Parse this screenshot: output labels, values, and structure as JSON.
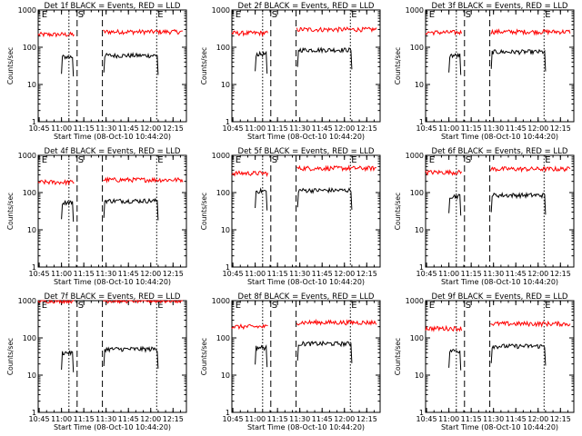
{
  "figure": {
    "panels_rows": 3,
    "panels_cols": 3
  },
  "chart_data": [
    {
      "type": "line",
      "title": "Det 1f BLACK = Events, RED = LLD",
      "xlabel": "Start Time (08-Oct-10 10:44:20)",
      "ylabel": "Counts/sec",
      "yscale": "log",
      "ylim": [
        1,
        1000
      ],
      "xlim": [
        "10:44:20",
        "12:24:00"
      ],
      "x_ticks": [
        "10:45",
        "11:00",
        "11:15",
        "11:30",
        "11:45",
        "12:00",
        "12:15"
      ],
      "y_ticks": [
        "1",
        "10",
        "100",
        "1000"
      ],
      "markers": [
        {
          "time": "10:46:00",
          "label": "E",
          "style": "none"
        },
        {
          "time": "11:05:00",
          "label": "",
          "style": "dotted"
        },
        {
          "time": "11:10:30",
          "label": "S",
          "style": "dashed"
        },
        {
          "time": "11:27:30",
          "label": "",
          "style": "dashed"
        },
        {
          "time": "12:04:00",
          "label": "E",
          "style": "dotted"
        }
      ],
      "series": [
        {
          "name": "LLD",
          "color": "#ff0000",
          "segments": [
            {
              "start": "10:44:20",
              "end": "11:08:30",
              "level": 220
            },
            {
              "start": "11:28:00",
              "end": "12:21:30",
              "level": 260
            }
          ]
        },
        {
          "name": "Events",
          "color": "#000000",
          "segments": [
            {
              "start": "11:00:00",
              "end": "11:08:00",
              "level": 55
            },
            {
              "start": "11:28:30",
              "end": "12:05:00",
              "level": 60
            }
          ]
        }
      ]
    },
    {
      "type": "line",
      "title": "Det 2f BLACK = Events, RED = LLD",
      "xlabel": "Start Time (08-Oct-10 10:44:20)",
      "ylabel": "Counts/sec",
      "yscale": "log",
      "ylim": [
        1,
        1000
      ],
      "xlim": [
        "10:44:20",
        "12:24:00"
      ],
      "x_ticks": [
        "10:45",
        "11:00",
        "11:15",
        "11:30",
        "11:45",
        "12:00",
        "12:15"
      ],
      "y_ticks": [
        "1",
        "10",
        "100",
        "1000"
      ],
      "markers": [
        {
          "time": "10:46:00",
          "label": "E",
          "style": "none"
        },
        {
          "time": "11:05:00",
          "label": "",
          "style": "dotted"
        },
        {
          "time": "11:10:30",
          "label": "S",
          "style": "dashed"
        },
        {
          "time": "11:27:30",
          "label": "",
          "style": "dashed"
        },
        {
          "time": "12:04:00",
          "label": "E",
          "style": "dotted"
        }
      ],
      "series": [
        {
          "name": "LLD",
          "color": "#ff0000",
          "segments": [
            {
              "start": "10:44:20",
              "end": "11:08:30",
              "level": 240
            },
            {
              "start": "11:28:00",
              "end": "12:21:30",
              "level": 300
            }
          ]
        },
        {
          "name": "Events",
          "color": "#000000",
          "segments": [
            {
              "start": "11:00:00",
              "end": "11:08:00",
              "level": 65
            },
            {
              "start": "11:28:30",
              "end": "12:05:00",
              "level": 85
            }
          ]
        }
      ]
    },
    {
      "type": "line",
      "title": "Det 3f BLACK = Events, RED = LLD",
      "xlabel": "Start Time (08-Oct-10 10:44:20)",
      "ylabel": "Counts/sec",
      "yscale": "log",
      "ylim": [
        1,
        1000
      ],
      "xlim": [
        "10:44:20",
        "12:24:00"
      ],
      "x_ticks": [
        "10:45",
        "11:00",
        "11:15",
        "11:30",
        "11:45",
        "12:00",
        "12:15"
      ],
      "y_ticks": [
        "1",
        "10",
        "100",
        "1000"
      ],
      "markers": [
        {
          "time": "10:46:00",
          "label": "E",
          "style": "none"
        },
        {
          "time": "11:05:00",
          "label": "",
          "style": "dotted"
        },
        {
          "time": "11:10:30",
          "label": "S",
          "style": "dashed"
        },
        {
          "time": "11:27:30",
          "label": "",
          "style": "dashed"
        },
        {
          "time": "12:04:00",
          "label": "E",
          "style": "dotted"
        }
      ],
      "series": [
        {
          "name": "LLD",
          "color": "#ff0000",
          "segments": [
            {
              "start": "10:44:20",
              "end": "11:08:30",
              "level": 250
            },
            {
              "start": "11:28:00",
              "end": "12:21:30",
              "level": 260
            }
          ]
        },
        {
          "name": "Events",
          "color": "#000000",
          "segments": [
            {
              "start": "11:00:00",
              "end": "11:08:00",
              "level": 60
            },
            {
              "start": "11:28:30",
              "end": "12:05:00",
              "level": 75
            }
          ]
        }
      ]
    },
    {
      "type": "line",
      "title": "Det 4f BLACK = Events, RED = LLD",
      "xlabel": "Start Time (08-Oct-10 10:44:20)",
      "ylabel": "Counts/sec",
      "yscale": "log",
      "ylim": [
        1,
        1000
      ],
      "xlim": [
        "10:44:20",
        "12:24:00"
      ],
      "x_ticks": [
        "10:45",
        "11:00",
        "11:15",
        "11:30",
        "11:45",
        "12:00",
        "12:15"
      ],
      "y_ticks": [
        "1",
        "10",
        "100",
        "1000"
      ],
      "markers": [
        {
          "time": "10:46:00",
          "label": "E",
          "style": "none"
        },
        {
          "time": "11:05:00",
          "label": "",
          "style": "dotted"
        },
        {
          "time": "11:10:30",
          "label": "S",
          "style": "dashed"
        },
        {
          "time": "11:27:30",
          "label": "",
          "style": "dashed"
        },
        {
          "time": "12:04:00",
          "label": "E",
          "style": "dotted"
        }
      ],
      "series": [
        {
          "name": "LLD",
          "color": "#ff0000",
          "segments": [
            {
              "start": "10:44:20",
              "end": "11:08:30",
              "level": 190
            },
            {
              "start": "11:28:00",
              "end": "12:21:30",
              "level": 220
            }
          ]
        },
        {
          "name": "Events",
          "color": "#000000",
          "segments": [
            {
              "start": "11:00:00",
              "end": "11:08:00",
              "level": 55
            },
            {
              "start": "11:28:30",
              "end": "12:05:00",
              "level": 60
            }
          ]
        }
      ]
    },
    {
      "type": "line",
      "title": "Det 5f BLACK = Events, RED = LLD",
      "xlabel": "Start Time (08-Oct-10 10:44:20)",
      "ylabel": "Counts/sec",
      "yscale": "log",
      "ylim": [
        1,
        1000
      ],
      "xlim": [
        "10:44:20",
        "12:24:00"
      ],
      "x_ticks": [
        "10:45",
        "11:00",
        "11:15",
        "11:30",
        "11:45",
        "12:00",
        "12:15"
      ],
      "y_ticks": [
        "1",
        "10",
        "100",
        "1000"
      ],
      "markers": [
        {
          "time": "10:46:00",
          "label": "E",
          "style": "none"
        },
        {
          "time": "11:05:00",
          "label": "",
          "style": "dotted"
        },
        {
          "time": "11:10:30",
          "label": "S",
          "style": "dashed"
        },
        {
          "time": "11:27:30",
          "label": "",
          "style": "dashed"
        },
        {
          "time": "12:04:00",
          "label": "E",
          "style": "dotted"
        }
      ],
      "series": [
        {
          "name": "LLD",
          "color": "#ff0000",
          "segments": [
            {
              "start": "10:44:20",
              "end": "11:08:30",
              "level": 330
            },
            {
              "start": "11:28:00",
              "end": "12:21:30",
              "level": 450
            }
          ]
        },
        {
          "name": "Events",
          "color": "#000000",
          "segments": [
            {
              "start": "11:00:00",
              "end": "11:08:00",
              "level": 110
            },
            {
              "start": "11:28:30",
              "end": "12:05:00",
              "level": 115
            }
          ]
        }
      ]
    },
    {
      "type": "line",
      "title": "Det 6f BLACK = Events, RED = LLD",
      "xlabel": "Start Time (08-Oct-10 10:44:20)",
      "ylabel": "Counts/sec",
      "yscale": "log",
      "ylim": [
        1,
        1000
      ],
      "xlim": [
        "10:44:20",
        "12:24:00"
      ],
      "x_ticks": [
        "10:45",
        "11:00",
        "11:15",
        "11:30",
        "11:45",
        "12:00",
        "12:15"
      ],
      "y_ticks": [
        "1",
        "10",
        "100",
        "1000"
      ],
      "markers": [
        {
          "time": "10:46:00",
          "label": "E",
          "style": "none"
        },
        {
          "time": "11:05:00",
          "label": "",
          "style": "dotted"
        },
        {
          "time": "11:10:30",
          "label": "S",
          "style": "dashed"
        },
        {
          "time": "11:27:30",
          "label": "",
          "style": "dashed"
        },
        {
          "time": "12:04:00",
          "label": "E",
          "style": "dotted"
        }
      ],
      "series": [
        {
          "name": "LLD",
          "color": "#ff0000",
          "segments": [
            {
              "start": "10:44:20",
              "end": "11:08:30",
              "level": 350
            },
            {
              "start": "11:28:00",
              "end": "12:21:30",
              "level": 430
            }
          ]
        },
        {
          "name": "Events",
          "color": "#000000",
          "segments": [
            {
              "start": "11:00:00",
              "end": "11:08:00",
              "level": 80
            },
            {
              "start": "11:28:30",
              "end": "12:05:00",
              "level": 85
            }
          ]
        }
      ]
    },
    {
      "type": "line",
      "title": "Det 7f BLACK = Events, RED = LLD",
      "xlabel": "Start Time (08-Oct-10 10:44:20)",
      "ylabel": "Counts/sec",
      "yscale": "log",
      "ylim": [
        1,
        1000
      ],
      "xlim": [
        "10:44:20",
        "12:24:00"
      ],
      "x_ticks": [
        "10:45",
        "11:00",
        "11:15",
        "11:30",
        "11:45",
        "12:00",
        "12:15"
      ],
      "y_ticks": [
        "1",
        "10",
        "100",
        "1000"
      ],
      "markers": [
        {
          "time": "10:46:00",
          "label": "E",
          "style": "none"
        },
        {
          "time": "11:05:00",
          "label": "",
          "style": "dotted"
        },
        {
          "time": "11:10:30",
          "label": "S",
          "style": "dashed"
        },
        {
          "time": "11:27:30",
          "label": "",
          "style": "dashed"
        },
        {
          "time": "12:04:00",
          "label": "E",
          "style": "dotted"
        }
      ],
      "series": [
        {
          "name": "LLD",
          "color": "#ff0000",
          "segments": [
            {
              "start": "10:44:20",
              "end": "11:08:30",
              "level": 1000
            },
            {
              "start": "11:28:00",
              "end": "12:21:30",
              "level": 1000
            }
          ]
        },
        {
          "name": "Events",
          "color": "#000000",
          "segments": [
            {
              "start": "11:00:00",
              "end": "11:08:00",
              "level": 40
            },
            {
              "start": "11:28:30",
              "end": "12:05:00",
              "level": 50
            }
          ]
        }
      ]
    },
    {
      "type": "line",
      "title": "Det 8f BLACK = Events, RED = LLD",
      "xlabel": "Start Time (08-Oct-10 10:44:20)",
      "ylabel": "Counts/sec",
      "yscale": "log",
      "ylim": [
        1,
        1000
      ],
      "xlim": [
        "10:44:20",
        "12:24:00"
      ],
      "x_ticks": [
        "10:45",
        "11:00",
        "11:15",
        "11:30",
        "11:45",
        "12:00",
        "12:15"
      ],
      "y_ticks": [
        "1",
        "10",
        "100",
        "1000"
      ],
      "markers": [
        {
          "time": "10:46:00",
          "label": "E",
          "style": "none"
        },
        {
          "time": "11:05:00",
          "label": "",
          "style": "dotted"
        },
        {
          "time": "11:10:30",
          "label": "S",
          "style": "dashed"
        },
        {
          "time": "11:27:30",
          "label": "",
          "style": "dashed"
        },
        {
          "time": "12:04:00",
          "label": "E",
          "style": "dotted"
        }
      ],
      "series": [
        {
          "name": "LLD",
          "color": "#ff0000",
          "segments": [
            {
              "start": "10:44:20",
              "end": "11:08:30",
              "level": 200
            },
            {
              "start": "11:28:00",
              "end": "12:21:30",
              "level": 260
            }
          ]
        },
        {
          "name": "Events",
          "color": "#000000",
          "segments": [
            {
              "start": "11:00:00",
              "end": "11:08:00",
              "level": 55
            },
            {
              "start": "11:28:30",
              "end": "12:05:00",
              "level": 70
            }
          ]
        }
      ]
    },
    {
      "type": "line",
      "title": "Det 9f BLACK = Events, RED = LLD",
      "xlabel": "Start Time (08-Oct-10 10:44:20)",
      "ylabel": "Counts/sec",
      "yscale": "log",
      "ylim": [
        1,
        1000
      ],
      "xlim": [
        "10:44:20",
        "12:24:00"
      ],
      "x_ticks": [
        "10:45",
        "11:00",
        "11:15",
        "11:30",
        "11:45",
        "12:00",
        "12:15"
      ],
      "y_ticks": [
        "1",
        "10",
        "100",
        "1000"
      ],
      "markers": [
        {
          "time": "10:46:00",
          "label": "E",
          "style": "none"
        },
        {
          "time": "11:05:00",
          "label": "",
          "style": "dotted"
        },
        {
          "time": "11:10:30",
          "label": "S",
          "style": "dashed"
        },
        {
          "time": "11:27:30",
          "label": "",
          "style": "dashed"
        },
        {
          "time": "12:04:00",
          "label": "E",
          "style": "dotted"
        }
      ],
      "series": [
        {
          "name": "LLD",
          "color": "#ff0000",
          "segments": [
            {
              "start": "10:44:20",
              "end": "11:08:30",
              "level": 180
            },
            {
              "start": "11:28:00",
              "end": "12:21:30",
              "level": 240
            }
          ]
        },
        {
          "name": "Events",
          "color": "#000000",
          "segments": [
            {
              "start": "11:00:00",
              "end": "11:08:00",
              "level": 45
            },
            {
              "start": "11:28:30",
              "end": "12:05:00",
              "level": 60
            }
          ]
        }
      ]
    }
  ]
}
